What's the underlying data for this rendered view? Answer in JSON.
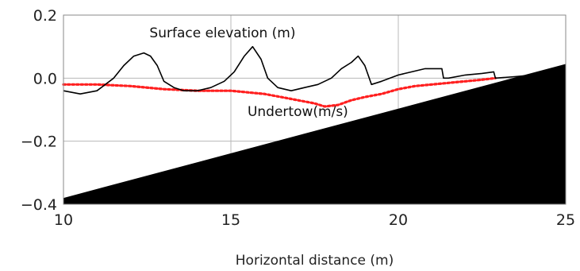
{
  "chart_data": {
    "type": "line",
    "title": "",
    "xlabel": "Horizontal distance (m)",
    "ylabel": "",
    "xlim": [
      10,
      25
    ],
    "ylim": [
      -0.4,
      0.2
    ],
    "xticks": [
      "10",
      "15",
      "20",
      "25"
    ],
    "xtick_values": [
      10,
      15,
      20,
      25
    ],
    "yticks": [
      "0.2",
      "0.0",
      "−0.2",
      "−0.4"
    ],
    "ytick_values": [
      0.2,
      0.0,
      -0.2,
      -0.4
    ],
    "grid": true,
    "colors": {
      "surface": "#000000",
      "undertow": "#ff2020",
      "bed": "#000000",
      "grid": "#b8b8b8",
      "frame": "#8a8a8a"
    },
    "series": [
      {
        "name": "Surface elevation (m)",
        "style": "solid",
        "x": [
          10.0,
          10.5,
          11.0,
          11.5,
          11.8,
          12.1,
          12.4,
          12.6,
          12.8,
          13.0,
          13.3,
          13.6,
          14.0,
          14.4,
          14.8,
          15.1,
          15.4,
          15.65,
          15.9,
          16.1,
          16.4,
          16.8,
          17.2,
          17.6,
          18.0,
          18.3,
          18.6,
          18.8,
          19.0,
          19.2,
          19.5,
          20.0,
          20.4,
          20.8,
          21.2,
          21.3,
          21.35,
          21.5,
          22.0,
          22.5,
          22.85,
          22.9,
          23.5,
          24.0
        ],
        "y": [
          -0.04,
          -0.05,
          -0.04,
          0.0,
          0.04,
          0.07,
          0.08,
          0.07,
          0.04,
          -0.01,
          -0.03,
          -0.04,
          -0.04,
          -0.03,
          -0.01,
          0.02,
          0.07,
          0.1,
          0.06,
          0.0,
          -0.03,
          -0.04,
          -0.03,
          -0.02,
          0.0,
          0.03,
          0.05,
          0.07,
          0.04,
          -0.02,
          -0.01,
          0.01,
          0.02,
          0.03,
          0.03,
          0.03,
          0.0,
          0.0,
          0.01,
          0.015,
          0.02,
          0.0,
          0.005,
          0.01
        ]
      },
      {
        "name": "Undertow(m/s)",
        "style": "dotted",
        "x": [
          10.0,
          11.0,
          12.0,
          13.0,
          14.0,
          15.0,
          15.5,
          16.0,
          16.5,
          17.0,
          17.5,
          17.8,
          18.2,
          18.6,
          19.0,
          19.5,
          20.0,
          20.5,
          21.0,
          21.5,
          22.0,
          22.5,
          22.9
        ],
        "y": [
          -0.02,
          -0.02,
          -0.025,
          -0.035,
          -0.04,
          -0.04,
          -0.045,
          -0.05,
          -0.06,
          -0.07,
          -0.08,
          -0.09,
          -0.085,
          -0.07,
          -0.06,
          -0.05,
          -0.035,
          -0.025,
          -0.02,
          -0.015,
          -0.01,
          -0.005,
          0.0
        ]
      }
    ],
    "bed": {
      "x": [
        10,
        25
      ],
      "y": [
        -0.38,
        0.045
      ]
    },
    "annotations": [
      {
        "text": "Surface elevation (m)",
        "x": 14.75,
        "y": 0.13
      },
      {
        "text": "Undertow(m/s)",
        "x": 17.0,
        "y": -0.12
      }
    ]
  }
}
